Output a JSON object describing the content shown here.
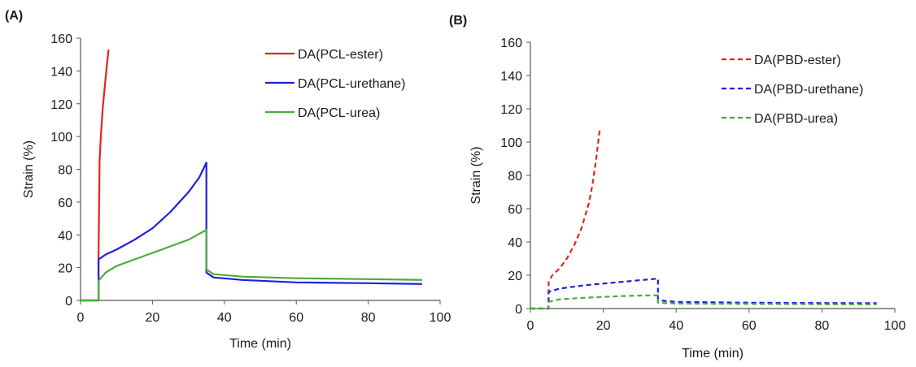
{
  "chart_data": [
    {
      "panel_label": "(A)",
      "type": "line",
      "xlabel": "Time (min)",
      "ylabel": "Strain (%)",
      "xlim": [
        0,
        100
      ],
      "ylim": [
        0,
        160
      ],
      "xticks": [
        "0",
        "20",
        "40",
        "60",
        "80",
        "100"
      ],
      "yticks": [
        "0",
        "20",
        "40",
        "60",
        "80",
        "100",
        "120",
        "140",
        "160"
      ],
      "grid": false,
      "legend_position": "top-right",
      "series": [
        {
          "name": "DA(PCL-ester)",
          "color": "#e8231c",
          "dash": "solid",
          "x": [
            0,
            5,
            5,
            5.3,
            5.7,
            6.2,
            6.8,
            7.3,
            7.8
          ],
          "y": [
            0,
            0,
            25,
            85,
            102,
            118,
            132,
            143,
            153
          ]
        },
        {
          "name": "DA(PCL-urethane)",
          "color": "#1f1fe0",
          "dash": "solid",
          "x": [
            0,
            5,
            5,
            7,
            10,
            15,
            20,
            25,
            30,
            33,
            35,
            35,
            37,
            45,
            60,
            80,
            95
          ],
          "y": [
            0,
            0,
            25,
            28,
            31,
            37,
            44,
            54,
            66,
            75,
            84,
            17,
            14,
            12.5,
            11,
            10.5,
            10
          ]
        },
        {
          "name": "DA(PCL-urea)",
          "color": "#4aac3a",
          "dash": "solid",
          "x": [
            0,
            5,
            5,
            7,
            10,
            15,
            20,
            25,
            30,
            35,
            35,
            37,
            45,
            60,
            80,
            95
          ],
          "y": [
            0,
            0,
            12,
            17,
            21,
            25,
            29,
            33,
            37,
            43,
            19,
            16,
            14.5,
            13.5,
            13,
            12.5
          ]
        }
      ]
    },
    {
      "panel_label": "(B)",
      "type": "line",
      "xlabel": "Time (min)",
      "ylabel": "Strain (%)",
      "xlim": [
        0,
        100
      ],
      "ylim": [
        0,
        160
      ],
      "xticks": [
        "0",
        "20",
        "40",
        "60",
        "80",
        "100"
      ],
      "yticks": [
        "0",
        "20",
        "40",
        "60",
        "80",
        "100",
        "120",
        "140",
        "160"
      ],
      "grid": false,
      "legend_position": "top-right",
      "series": [
        {
          "name": "DA(PBD-ester)",
          "color": "#e8231c",
          "dash": "dashed",
          "x": [
            0,
            5,
            5,
            6,
            8,
            10,
            12,
            14,
            16,
            17,
            18,
            19
          ],
          "y": [
            0,
            0,
            16,
            20,
            24,
            30,
            38,
            48,
            63,
            74,
            89,
            107
          ]
        },
        {
          "name": "DA(PBD-urethane)",
          "color": "#1f1fe0",
          "dash": "dashed",
          "x": [
            0,
            5,
            5,
            8,
            15,
            25,
            35,
            35,
            40,
            60,
            80,
            95
          ],
          "y": [
            0,
            0,
            10,
            12,
            14,
            16,
            18,
            5,
            4,
            3.5,
            3.3,
            3.2
          ]
        },
        {
          "name": "DA(PBD-urea)",
          "color": "#4aac3a",
          "dash": "dashed",
          "x": [
            0,
            5,
            5,
            8,
            15,
            25,
            35,
            35,
            40,
            60,
            80,
            95
          ],
          "y": [
            0,
            0,
            4,
            5.5,
            6.5,
            7.5,
            8,
            3.5,
            3,
            2.8,
            2.6,
            2.5
          ]
        }
      ]
    }
  ]
}
